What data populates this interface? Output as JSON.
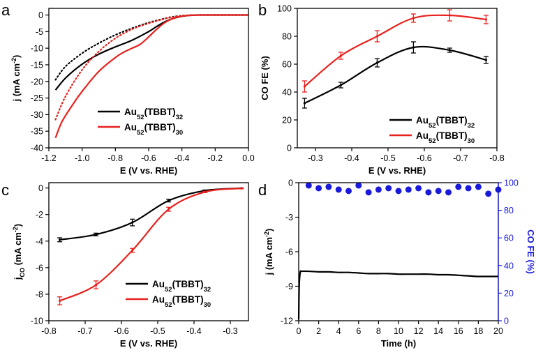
{
  "chart_data": [
    {
      "panel": "a",
      "type": "line",
      "xlabel": "E (V vs. RHE)",
      "ylabel": "j (mA cm-2)",
      "xlim": [
        -1.2,
        0.0
      ],
      "ylim": [
        -40,
        2
      ],
      "xticks": [
        "-1.2",
        "-1.0",
        "-0.8",
        "-0.6",
        "-0.4",
        "-0.2",
        "0.0"
      ],
      "yticks": [
        "0",
        "-5",
        "-10",
        "-15",
        "-20",
        "-25",
        "-30",
        "-35",
        "-40"
      ],
      "legend": "bottom-left",
      "series": [
        {
          "name": "Au52(TBBT)32",
          "label_base": "Au",
          "label_sub1": "52",
          "label_mid": "(TBBT)",
          "label_sub2": "32",
          "color": "#000000",
          "style": "solid",
          "x": [
            -1.16,
            -1.1,
            -1.0,
            -0.9,
            -0.8,
            -0.7,
            -0.6,
            -0.55,
            -0.5,
            -0.45,
            -0.4,
            -0.35,
            -0.3,
            -0.25,
            -0.2,
            0.0
          ],
          "y": [
            -22.6,
            -19.0,
            -14.8,
            -11.8,
            -9.6,
            -7.6,
            -5.0,
            -3.4,
            -2.0,
            -1.0,
            -0.4,
            -0.1,
            0.0,
            0.0,
            0.0,
            0.0
          ]
        },
        {
          "name": "Au52(TBBT)32 (dotted)",
          "color": "#000000",
          "style": "dotted",
          "x": [
            -1.16,
            -1.1,
            -1.0,
            -0.9,
            -0.8,
            -0.7,
            -0.6,
            -0.5,
            -0.45,
            -0.4,
            -0.35,
            -0.3,
            -0.25,
            0.0
          ],
          "y": [
            -19.5,
            -15.5,
            -11.5,
            -8.5,
            -6.0,
            -4.0,
            -2.3,
            -1.0,
            -0.5,
            -0.2,
            -0.05,
            0.0,
            0.0,
            0.0
          ]
        },
        {
          "name": "Au52(TBBT)30",
          "label_base": "Au",
          "label_sub1": "52",
          "label_mid": "(TBBT)",
          "label_sub2": "30",
          "color": "#e8211d",
          "style": "solid",
          "x": [
            -1.16,
            -1.12,
            -1.05,
            -1.0,
            -0.9,
            -0.8,
            -0.75,
            -0.7,
            -0.65,
            -0.6,
            -0.55,
            -0.5,
            -0.45,
            -0.4,
            -0.35,
            -0.3,
            -0.25,
            0.0
          ],
          "y": [
            -37.0,
            -32.0,
            -26.5,
            -23.0,
            -17.0,
            -12.8,
            -11.2,
            -10.0,
            -8.8,
            -6.6,
            -4.2,
            -2.2,
            -1.0,
            -0.35,
            -0.1,
            0.0,
            0.0,
            0.0
          ]
        },
        {
          "name": "Au52(TBBT)30 (dotted)",
          "color": "#e8211d",
          "style": "dotted",
          "x": [
            -1.16,
            -1.1,
            -1.0,
            -0.9,
            -0.8,
            -0.7,
            -0.6,
            -0.5,
            -0.45,
            -0.4,
            -0.35,
            -0.3,
            0.0
          ],
          "y": [
            -31.5,
            -24.5,
            -16.5,
            -11.0,
            -7.0,
            -4.3,
            -2.5,
            -1.1,
            -0.6,
            -0.25,
            -0.08,
            0.0,
            0.0
          ]
        }
      ]
    },
    {
      "panel": "b",
      "type": "line",
      "xlabel": "E (V vs. RHE)",
      "ylabel": "CO FE (%)",
      "xlim": [
        -0.25,
        -0.8
      ],
      "ylim": [
        0,
        100
      ],
      "xticks": [
        "-0.3",
        "-0.4",
        "-0.5",
        "-0.6",
        "-0.7",
        "-0.8"
      ],
      "yticks": [
        "0",
        "20",
        "40",
        "60",
        "80",
        "100"
      ],
      "legend": "bottom-right",
      "series": [
        {
          "name": "Au52(TBBT)32",
          "label_base": "Au",
          "label_sub1": "52",
          "label_mid": "(TBBT)",
          "label_sub2": "32",
          "color": "#000000",
          "x": [
            -0.27,
            -0.37,
            -0.47,
            -0.57,
            -0.67,
            -0.77
          ],
          "y": [
            32,
            45,
            61,
            72,
            70,
            63
          ],
          "err": [
            3.5,
            2,
            3,
            4,
            1.5,
            2.5
          ]
        },
        {
          "name": "Au52(TBBT)30",
          "label_base": "Au",
          "label_sub1": "52",
          "label_mid": "(TBBT)",
          "label_sub2": "30",
          "color": "#e8211d",
          "x": [
            -0.27,
            -0.37,
            -0.47,
            -0.57,
            -0.67,
            -0.77
          ],
          "y": [
            44,
            66,
            80,
            93,
            95,
            92
          ],
          "err": [
            4,
            2.5,
            4,
            3,
            4,
            3
          ]
        }
      ]
    },
    {
      "panel": "c",
      "type": "line",
      "xlabel": "E (V vs. RHE)",
      "ylabel": "jCO (mA cm-2)",
      "xlim": [
        -0.8,
        -0.25
      ],
      "ylim": [
        -10,
        0.4
      ],
      "xticks": [
        "-0.8",
        "-0.7",
        "-0.6",
        "-0.5",
        "-0.4",
        "-0.3"
      ],
      "yticks": [
        "0",
        "-2",
        "-4",
        "-6",
        "-8",
        "-10"
      ],
      "legend": "bottom-right",
      "series": [
        {
          "name": "Au52(TBBT)32",
          "label_base": "Au",
          "label_sub1": "52",
          "label_mid": "(TBBT)",
          "label_sub2": "32",
          "color": "#000000",
          "x": [
            -0.77,
            -0.67,
            -0.57,
            -0.47,
            -0.37,
            -0.27
          ],
          "y": [
            -3.9,
            -3.5,
            -2.6,
            -0.95,
            -0.2,
            -0.02
          ],
          "err": [
            0.15,
            0.1,
            0.25,
            0.1,
            0.05,
            0.03
          ]
        },
        {
          "name": "Au52(TBBT)30",
          "label_base": "Au",
          "label_sub1": "52",
          "label_mid": "(TBBT)",
          "label_sub2": "30",
          "color": "#e8211d",
          "x": [
            -0.77,
            -0.67,
            -0.57,
            -0.47,
            -0.37,
            -0.27
          ],
          "y": [
            -8.5,
            -7.3,
            -4.7,
            -1.6,
            -0.3,
            -0.03
          ],
          "err": [
            0.3,
            0.3,
            0.15,
            0.15,
            0.05,
            0.03
          ]
        }
      ]
    },
    {
      "panel": "d",
      "type": "scatter",
      "xlabel": "Time (h)",
      "ylabel": "j (mA cm-2)",
      "ylabel_right": "CO FE (%)",
      "xlim": [
        0,
        20
      ],
      "ylim": [
        -12,
        0
      ],
      "ylim_right": [
        0,
        100
      ],
      "xticks": [
        "0",
        "2",
        "4",
        "6",
        "8",
        "10",
        "12",
        "14",
        "16",
        "18",
        "20"
      ],
      "yticks": [
        "0",
        "-3",
        "-6",
        "-9",
        "-12"
      ],
      "yticks_right": [
        "0",
        "20",
        "40",
        "60",
        "80",
        "100"
      ],
      "right_axis_color": "#1a1adb",
      "series": [
        {
          "name": "j",
          "type": "line",
          "color": "#000000",
          "x": [
            0,
            0.05,
            0.15,
            0.3,
            1,
            2,
            3,
            4,
            5,
            6,
            7,
            8,
            9,
            10,
            11,
            12,
            13,
            14,
            15,
            16,
            17,
            18,
            19,
            20
          ],
          "y": [
            -11.9,
            -9.0,
            -7.8,
            -7.7,
            -7.7,
            -7.75,
            -7.75,
            -7.8,
            -7.8,
            -7.85,
            -7.9,
            -7.9,
            -7.9,
            -7.95,
            -7.95,
            -7.95,
            -7.95,
            -8.0,
            -8.0,
            -8.05,
            -8.1,
            -8.15,
            -8.15,
            -8.15
          ]
        },
        {
          "name": "CO FE",
          "type": "scatter",
          "axis": "right",
          "color": "#1a1adb",
          "x": [
            1,
            2,
            3,
            4,
            5,
            6,
            7,
            8,
            9,
            10,
            11,
            12,
            13,
            14,
            15,
            16,
            17,
            18,
            19,
            20
          ],
          "y": [
            98,
            96,
            97,
            95,
            94,
            98,
            93,
            95,
            96,
            94,
            95,
            96,
            93,
            94,
            93,
            97,
            96,
            97,
            92,
            95
          ]
        }
      ]
    }
  ]
}
